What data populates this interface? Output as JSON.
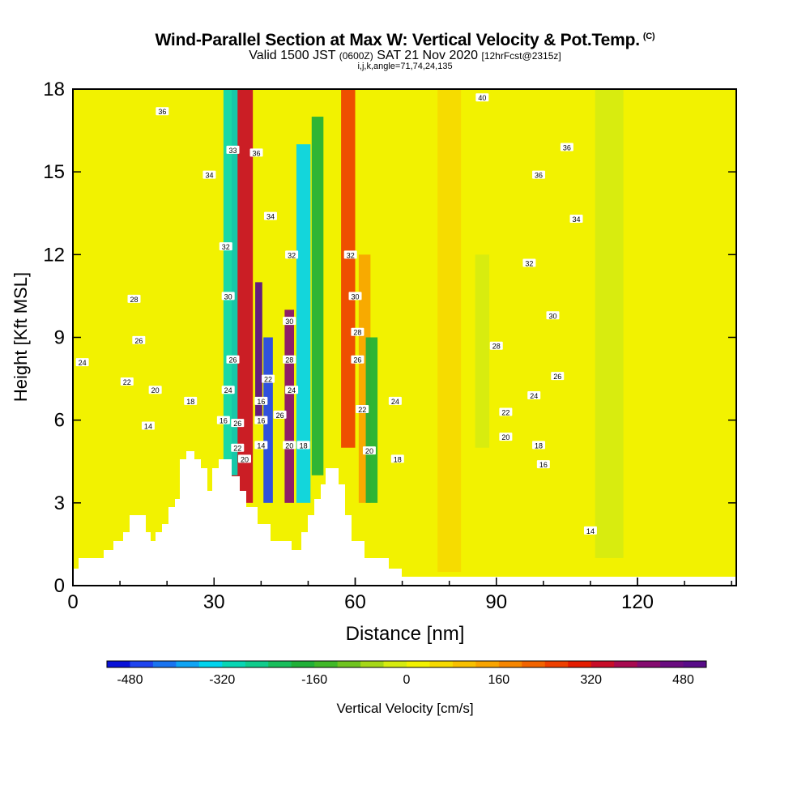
{
  "title": {
    "main": "Wind-Parallel Section at Max W: Vertical Velocity & Pot.Temp.",
    "copyright": "(C)",
    "valid_label": "Valid 1500 JST",
    "zulu": "(0600Z)",
    "date": "SAT 21 Nov 2020",
    "forecast": "[12hrFcst@2315z]",
    "indices": "i,j,k,angle=71,74,24,135"
  },
  "chart_data": {
    "type": "heatmap",
    "title": "Wind-Parallel Section at Max W: Vertical Velocity & Pot.Temp.",
    "xlabel": "Distance [nm]",
    "ylabel": "Height [Kft MSL]",
    "xlim": [
      0,
      141
    ],
    "ylim": [
      0,
      18
    ],
    "xticks": [
      0,
      30,
      60,
      90,
      120
    ],
    "yticks": [
      0,
      3,
      6,
      9,
      12,
      15,
      18
    ],
    "colorbar": {
      "label": "Vertical Velocity [cm/s]",
      "range": [
        -520,
        520
      ],
      "step": 40,
      "tick_values": [
        -480,
        -320,
        -160,
        0,
        160,
        320,
        480
      ],
      "colors": [
        "#0a12d8",
        "#1f44ef",
        "#1a74f0",
        "#0fa4f4",
        "#00d4ee",
        "#08d6b4",
        "#10cc8c",
        "#18be5c",
        "#20b038",
        "#40b828",
        "#70c420",
        "#a6d818",
        "#d6ec10",
        "#f2f200",
        "#f6da00",
        "#f8c000",
        "#f8a400",
        "#f68600",
        "#f26400",
        "#ee4000",
        "#e41c00",
        "#c80c28",
        "#a80a50",
        "#860c70",
        "#6a0c80",
        "#580c88"
      ]
    },
    "velocity_columns": [
      {
        "x": 36,
        "w": 4.5,
        "z0": 3,
        "z1": 18,
        "value": 340
      },
      {
        "x": 33.5,
        "w": 3,
        "z0": 4,
        "z1": 18,
        "value": -300
      },
      {
        "x": 39.5,
        "w": 1.5,
        "z0": 6,
        "z1": 11,
        "value": 480
      },
      {
        "x": 41.5,
        "w": 2,
        "z0": 3,
        "z1": 9,
        "value": -480
      },
      {
        "x": 46,
        "w": 2,
        "z0": 3,
        "z1": 10,
        "value": 400
      },
      {
        "x": 49,
        "w": 3,
        "z0": 3,
        "z1": 16,
        "value": -340
      },
      {
        "x": 52,
        "w": 2.5,
        "z0": 4,
        "z1": 17,
        "value": -180
      },
      {
        "x": 58.5,
        "w": 3,
        "z0": 5,
        "z1": 18,
        "value": 260
      },
      {
        "x": 62,
        "w": 2.5,
        "z0": 3,
        "z1": 12,
        "value": 120
      },
      {
        "x": 63.5,
        "w": 2.5,
        "z0": 3,
        "z1": 9,
        "value": -200
      },
      {
        "x": 68,
        "w": 4,
        "z0": 0.5,
        "z1": 18,
        "value": 20
      },
      {
        "x": 80,
        "w": 5,
        "z0": 0.5,
        "z1": 18,
        "value": 60
      },
      {
        "x": 87,
        "w": 3,
        "z0": 5,
        "z1": 12,
        "value": -40
      },
      {
        "x": 100,
        "w": 6,
        "z0": 0.5,
        "z1": 18,
        "value": 10
      },
      {
        "x": 114,
        "w": 6,
        "z0": 1,
        "z1": 18,
        "value": -30
      },
      {
        "x": 128,
        "w": 6,
        "z0": 0.5,
        "z1": 18,
        "value": 20
      }
    ],
    "theta_labels": [
      {
        "value": "36",
        "x": 19,
        "z": 17.2
      },
      {
        "value": "33",
        "x": 34,
        "z": 15.8
      },
      {
        "value": "36",
        "x": 39,
        "z": 15.7
      },
      {
        "value": "34",
        "x": 29,
        "z": 14.9
      },
      {
        "value": "34",
        "x": 42,
        "z": 13.4
      },
      {
        "value": "32",
        "x": 32.5,
        "z": 12.3
      },
      {
        "value": "32",
        "x": 46.5,
        "z": 12
      },
      {
        "value": "32",
        "x": 59,
        "z": 12
      },
      {
        "value": "30",
        "x": 33,
        "z": 10.5
      },
      {
        "value": "30",
        "x": 60,
        "z": 10.5
      },
      {
        "value": "28",
        "x": 13,
        "z": 10.4
      },
      {
        "value": "30",
        "x": 46,
        "z": 9.6
      },
      {
        "value": "26",
        "x": 14,
        "z": 8.9
      },
      {
        "value": "28",
        "x": 60.5,
        "z": 9.2
      },
      {
        "value": "28",
        "x": 46,
        "z": 8.2
      },
      {
        "value": "26",
        "x": 34,
        "z": 8.2
      },
      {
        "value": "26",
        "x": 60.5,
        "z": 8.2
      },
      {
        "value": "24",
        "x": 2,
        "z": 8.1
      },
      {
        "value": "22",
        "x": 11.5,
        "z": 7.4
      },
      {
        "value": "22",
        "x": 41.5,
        "z": 7.5
      },
      {
        "value": "24",
        "x": 46.5,
        "z": 7.1
      },
      {
        "value": "20",
        "x": 17.5,
        "z": 7.1
      },
      {
        "value": "24",
        "x": 33,
        "z": 7.1
      },
      {
        "value": "18",
        "x": 25,
        "z": 6.7
      },
      {
        "value": "16",
        "x": 40,
        "z": 6.7
      },
      {
        "value": "24",
        "x": 68.5,
        "z": 6.7
      },
      {
        "value": "22",
        "x": 61.5,
        "z": 6.4
      },
      {
        "value": "26",
        "x": 44,
        "z": 6.2
      },
      {
        "value": "16",
        "x": 32,
        "z": 6.0
      },
      {
        "value": "16",
        "x": 40,
        "z": 6.0
      },
      {
        "value": "26",
        "x": 35,
        "z": 5.9
      },
      {
        "value": "14",
        "x": 16,
        "z": 5.8
      },
      {
        "value": "22",
        "x": 35,
        "z": 5.0
      },
      {
        "value": "14",
        "x": 40,
        "z": 5.1
      },
      {
        "value": "20",
        "x": 46,
        "z": 5.1
      },
      {
        "value": "18",
        "x": 49,
        "z": 5.1
      },
      {
        "value": "20",
        "x": 36.5,
        "z": 4.6
      },
      {
        "value": "20",
        "x": 63,
        "z": 4.9
      },
      {
        "value": "18",
        "x": 69,
        "z": 4.6
      },
      {
        "value": "40",
        "x": 87,
        "z": 17.7
      },
      {
        "value": "36",
        "x": 105,
        "z": 15.9
      },
      {
        "value": "36",
        "x": 99,
        "z": 14.9
      },
      {
        "value": "34",
        "x": 107,
        "z": 13.3
      },
      {
        "value": "32",
        "x": 97,
        "z": 11.7
      },
      {
        "value": "30",
        "x": 102,
        "z": 9.8
      },
      {
        "value": "28",
        "x": 90,
        "z": 8.7
      },
      {
        "value": "26",
        "x": 103,
        "z": 7.6
      },
      {
        "value": "24",
        "x": 98,
        "z": 6.9
      },
      {
        "value": "22",
        "x": 92,
        "z": 6.3
      },
      {
        "value": "20",
        "x": 92,
        "z": 5.4
      },
      {
        "value": "18",
        "x": 99,
        "z": 5.1
      },
      {
        "value": "16",
        "x": 100,
        "z": 4.4
      },
      {
        "value": "14",
        "x": 110,
        "z": 2.0
      }
    ]
  }
}
